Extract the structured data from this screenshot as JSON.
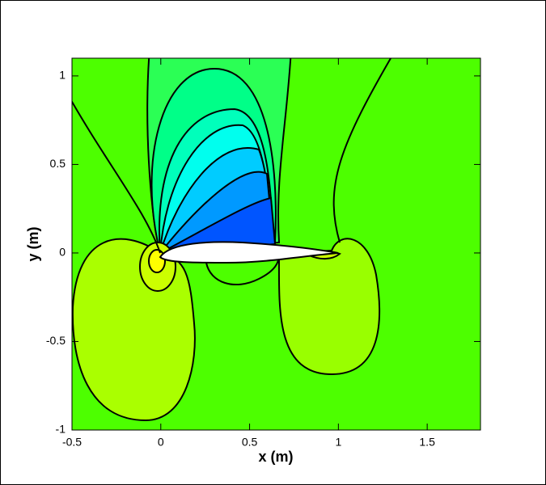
{
  "chart_data": {
    "type": "contour",
    "xlabel": "x (m)",
    "ylabel": "y (m)",
    "xlim": [
      -0.5,
      1.8
    ],
    "ylim": [
      -1,
      1.1
    ],
    "xticks": [
      -0.5,
      0,
      0.5,
      1,
      1.5
    ],
    "yticks": [
      -1,
      -0.5,
      0,
      0.5,
      1
    ]
  }
}
